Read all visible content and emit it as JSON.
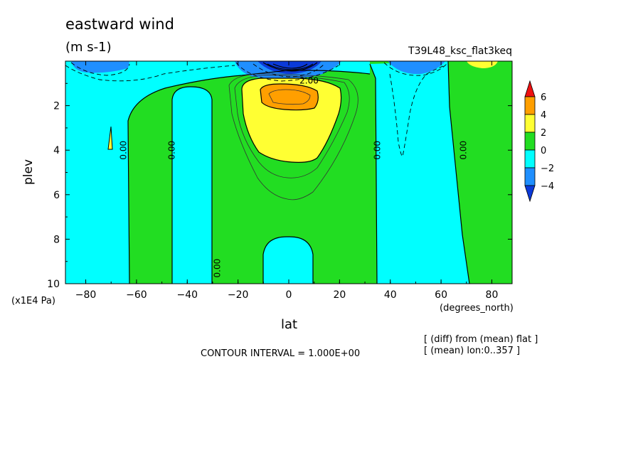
{
  "chart_data": {
    "type": "heatmap",
    "title": "eastward wind",
    "units": "(m s-1)",
    "run_label": "T39L48_ksc_flat3keq",
    "xlabel": "lat",
    "x_units": "(degrees_north)",
    "ylabel": "plev",
    "y_units": "(x1E4 Pa)",
    "xlim": [
      -88,
      88
    ],
    "ylim": [
      10,
      0
    ],
    "x_ticks": [
      "-80",
      "-60",
      "-40",
      "-20",
      "0",
      "20",
      "40",
      "60",
      "80"
    ],
    "y_ticks": [
      "2",
      "4",
      "6",
      "8",
      "10"
    ],
    "contour_interval_label": "CONTOUR INTERVAL = 1.000E+00",
    "notes": [
      "[ (diff) from (mean) flat ]",
      "[ (mean) lon:0..357 ]"
    ],
    "colorbar": {
      "labels": [
        "6",
        "4",
        "2",
        "0",
        "−2",
        "−4"
      ],
      "colors": [
        "#ee1111",
        "#ff9f00",
        "#ffff33",
        "#22dd22",
        "#00ffff",
        "#1f8fff",
        "#0b3ad9"
      ]
    },
    "contour_labels": [
      {
        "text": "0.00",
        "lat": -65,
        "plev": 4.0
      },
      {
        "text": "0.00",
        "lat": -46,
        "plev": 4.0
      },
      {
        "text": "0.00",
        "lat": -28,
        "plev": 9.3
      },
      {
        "text": "0.00",
        "lat": 35,
        "plev": 4.0
      },
      {
        "text": "0.00",
        "lat": 69,
        "plev": 4.0
      },
      {
        "text": "2.00",
        "lat": 8,
        "plev": 0.9
      }
    ]
  }
}
